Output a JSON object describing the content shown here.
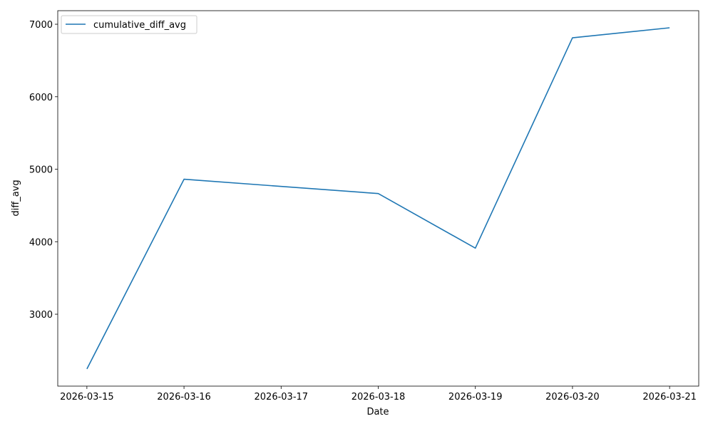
{
  "chart_data": {
    "type": "line",
    "title": "",
    "xlabel": "Date",
    "ylabel": "diff_avg",
    "x": [
      "2026-03-15",
      "2026-03-16",
      "2026-03-18",
      "2026-03-19",
      "2026-03-20",
      "2026-03-21"
    ],
    "x_tick_labels": [
      "2026-03-15",
      "2026-03-16",
      "2026-03-17",
      "2026-03-18",
      "2026-03-19",
      "2026-03-20",
      "2026-03-21"
    ],
    "xlim": [
      "2026-03-14T16:48",
      "2026-03-21T07:12"
    ],
    "y_ticks": [
      3000,
      4000,
      5000,
      6000,
      7000
    ],
    "ylim": [
      2008,
      7187
    ],
    "grid": false,
    "legend": "upper left",
    "series": [
      {
        "name": "cumulative_diff_avg",
        "color": "#1f77b4",
        "values": [
          2245,
          4862,
          4664,
          3912,
          6813,
          6951
        ]
      }
    ]
  }
}
